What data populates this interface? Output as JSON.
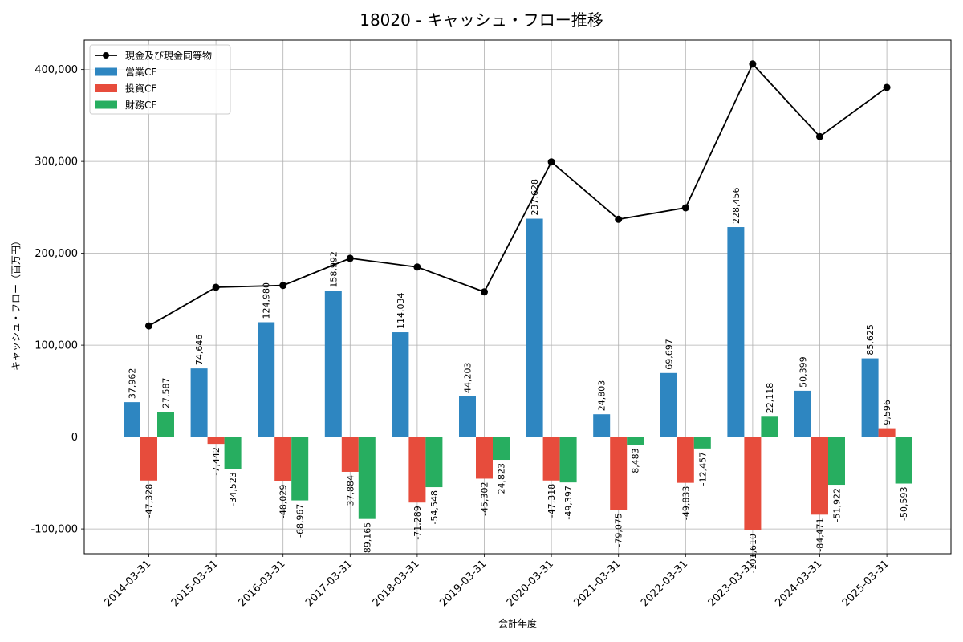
{
  "chart_data": {
    "type": "bar",
    "title": "18020 - キャッシュ・フロー推移",
    "xlabel": "会計年度",
    "ylabel": "キャッシュ・フロー（百万円）",
    "categories": [
      "2014-03-31",
      "2015-03-31",
      "2016-03-31",
      "2017-03-31",
      "2018-03-31",
      "2019-03-31",
      "2020-03-31",
      "2021-03-31",
      "2022-03-31",
      "2023-03-31",
      "2024-03-31",
      "2025-03-31"
    ],
    "ylim": [
      -127000,
      432000
    ],
    "yticks": [
      -100000,
      0,
      100000,
      200000,
      300000,
      400000
    ],
    "ytick_labels": [
      "-100,000",
      "0",
      "100,000",
      "200,000",
      "300,000",
      "400,000"
    ],
    "grid": true,
    "legend_position": "top-left",
    "series": [
      {
        "name": "営業CF",
        "kind": "bar",
        "color": "#2e86c1",
        "values": [
          37962,
          74646,
          124980,
          158992,
          114034,
          44203,
          237628,
          24803,
          69697,
          228456,
          50399,
          85625
        ],
        "labels": [
          "37,962",
          "74,646",
          "124,980",
          "158,992",
          "114,034",
          "44,203",
          "237,628",
          "24,803",
          "69,697",
          "228,456",
          "50,399",
          "85,625"
        ]
      },
      {
        "name": "投資CF",
        "kind": "bar",
        "color": "#e74c3c",
        "values": [
          -47328,
          -7442,
          -48029,
          -37884,
          -71289,
          -45302,
          -47318,
          -79075,
          -49833,
          -101610,
          -84471,
          9596
        ],
        "labels": [
          "-47,328",
          "-7,442",
          "-48,029",
          "-37,884",
          "-71,289",
          "-45,302",
          "-47,318",
          "-79,075",
          "-49,833",
          "-101,610",
          "-84,471",
          "9,596"
        ]
      },
      {
        "name": "財務CF",
        "kind": "bar",
        "color": "#27ae60",
        "values": [
          27587,
          -34523,
          -68967,
          -89165,
          -54548,
          -24823,
          -49397,
          -8483,
          -12457,
          22118,
          -51922,
          -50593
        ],
        "labels": [
          "27,587",
          "-34,523",
          "-68,967",
          "-89,165",
          "-54,548",
          "-24,823",
          "-49,397",
          "-8,483",
          "-12,457",
          "22,118",
          "-51,922",
          "-50,593"
        ]
      },
      {
        "name": "現金及び現金同等物",
        "kind": "line",
        "color": "#000000",
        "values": [
          121000,
          163000,
          165000,
          194500,
          185000,
          158000,
          299500,
          237000,
          249500,
          406000,
          327000,
          380500
        ]
      }
    ]
  }
}
